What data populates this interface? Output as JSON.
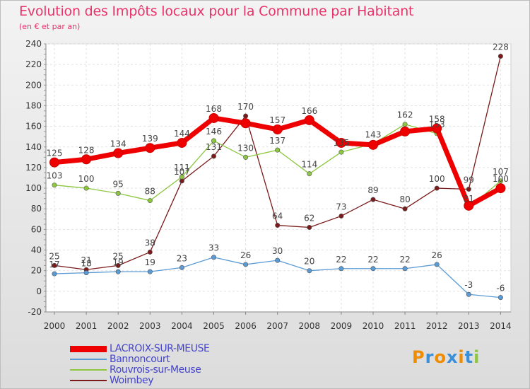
{
  "chart_data": {
    "type": "line",
    "title": "Evolution des Impôts locaux pour la Commune par Habitant",
    "subtitle": "(en € et par an)",
    "x": [
      "2000",
      "2001",
      "2002",
      "2003",
      "2004",
      "2005",
      "2006",
      "2007",
      "2008",
      "2009",
      "2010",
      "2011",
      "2012",
      "2013",
      "2014"
    ],
    "ylim": [
      -20,
      240
    ],
    "yticks": [
      -20,
      0,
      20,
      40,
      60,
      80,
      100,
      120,
      140,
      160,
      180,
      200,
      220,
      240
    ],
    "grid": true,
    "legend_position": "bottom-left",
    "series": [
      {
        "name": "LACROIX-SUR-MEUSE",
        "color": "#ee0000",
        "values": [
          125,
          128,
          134,
          139,
          144,
          168,
          163,
          157,
          166,
          144,
          142,
          155,
          158,
          83,
          100
        ],
        "labels": [
          "125",
          "128",
          "134",
          "139",
          "144",
          "168",
          "",
          "157",
          "166",
          "",
          "",
          "",
          "158",
          "",
          "100"
        ]
      },
      {
        "name": "Bannoncourt",
        "color": "#5b9bd5",
        "values": [
          17,
          18,
          19,
          19,
          23,
          33,
          26,
          30,
          20,
          22,
          22,
          22,
          26,
          -3,
          -6
        ],
        "labels": [
          "17",
          "18",
          "19",
          "19",
          "23",
          "33",
          "26",
          "30",
          "20",
          "22",
          "22",
          "22",
          "26",
          "-3",
          "-6"
        ]
      },
      {
        "name": "Rouvrois-sur-Meuse",
        "color": "#8dc63f",
        "values": [
          103,
          100,
          95,
          88,
          111,
          146,
          130,
          137,
          114,
          135,
          143,
          162,
          153,
          81,
          107
        ],
        "labels": [
          "103",
          "100",
          "95",
          "88",
          "111",
          "146",
          "130",
          "137",
          "114",
          "135",
          "143",
          "162",
          "153",
          "81",
          "107"
        ]
      },
      {
        "name": "Woimbey",
        "color": "#7a1a1a",
        "values": [
          25,
          21,
          25,
          38,
          107,
          131,
          170,
          64,
          62,
          73,
          89,
          80,
          100,
          99,
          228
        ],
        "labels": [
          "25",
          "21",
          "25",
          "38",
          "107",
          "131",
          "170",
          "64",
          "62",
          "73",
          "89",
          "80",
          "100",
          "99",
          "228"
        ]
      }
    ]
  },
  "logo": {
    "letters": [
      "P",
      "r",
      "o",
      "x",
      "i",
      "t",
      "i"
    ],
    "colors": [
      "#f08c00",
      "#3a8fd8",
      "#f08c00",
      "#3a8fd8",
      "#f08c00",
      "#3a8fd8",
      "#8dc63f"
    ]
  }
}
